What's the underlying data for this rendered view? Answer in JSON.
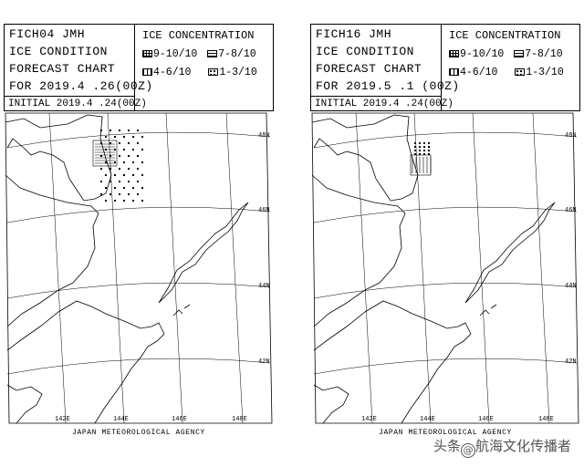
{
  "charts": [
    {
      "code": "FICH04   JMH",
      "title_line1": "ICE CONDITION",
      "title_line2": "FORECAST CHART",
      "forecast_for": "FOR 2019.4 .26(00Z)",
      "initial": "INITIAL 2019.4 .24(00Z)"
    },
    {
      "code": "FICH16   JMH",
      "title_line1": "ICE CONDITION",
      "title_line2": "FORECAST CHART",
      "forecast_for": "FOR 2019.5 .1 (00Z)",
      "initial": "INITIAL 2019.4 .24(00Z)"
    }
  ],
  "legend": {
    "title": "ICE CONCENTRATION",
    "items": [
      {
        "symbol": "grid-pattern-icon",
        "label": "9-10/10"
      },
      {
        "symbol": "horizontal-lines-pattern-icon",
        "label": "7-8/10"
      },
      {
        "symbol": "vertical-lines-pattern-icon",
        "label": "4-6/10"
      },
      {
        "symbol": "dots-pattern-icon",
        "label": "1-3/10"
      }
    ]
  },
  "grid_labels": {
    "lat": [
      "48N",
      "46N",
      "44N",
      "42N"
    ],
    "lon": [
      "142E",
      "144E",
      "146E",
      "148E"
    ]
  },
  "agency": "JAPAN METEOROLOGICAL AGENCY",
  "watermark": {
    "prefix": "头条",
    "at": "@",
    "name": "航海文化传播者"
  }
}
